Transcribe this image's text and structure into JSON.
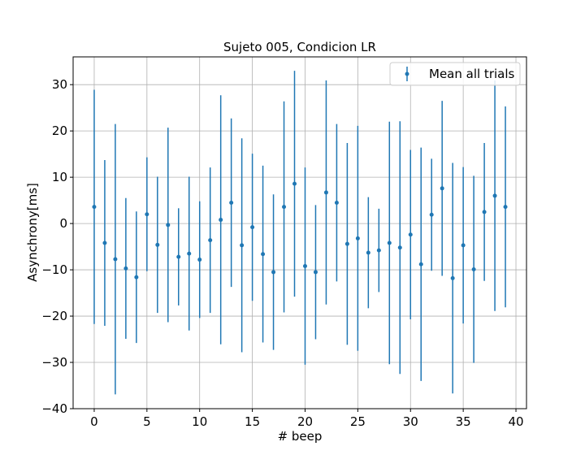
{
  "chart_data": {
    "type": "scatter",
    "title": "Sujeto 005, Condicion LR",
    "xlabel": "# beep",
    "ylabel": "Asynchrony[ms]",
    "xlim": [
      -2,
      41
    ],
    "ylim": [
      -40,
      36
    ],
    "xticks": [
      0,
      5,
      10,
      15,
      20,
      25,
      30,
      35,
      40
    ],
    "yticks": [
      -40,
      -30,
      -20,
      -10,
      0,
      10,
      20,
      30
    ],
    "grid": true,
    "legend": {
      "position": "top-right"
    },
    "colors": {
      "series": "#1f77b4"
    },
    "series": [
      {
        "name": "Mean all trials",
        "x": [
          0,
          1,
          2,
          3,
          4,
          5,
          6,
          7,
          8,
          9,
          10,
          11,
          12,
          13,
          14,
          15,
          16,
          17,
          18,
          19,
          20,
          21,
          22,
          23,
          24,
          25,
          26,
          27,
          28,
          29,
          30,
          31,
          32,
          33,
          34,
          35,
          36,
          37,
          38,
          39
        ],
        "y": [
          3.6,
          -4.2,
          -7.7,
          -9.7,
          -11.6,
          2.0,
          -4.6,
          -0.3,
          -7.2,
          -6.5,
          -7.8,
          -3.6,
          0.8,
          4.5,
          -4.7,
          -0.8,
          -6.6,
          -10.5,
          3.6,
          8.6,
          -9.2,
          -10.5,
          6.7,
          4.5,
          -4.4,
          -3.2,
          -6.3,
          -5.8,
          -4.2,
          -5.2,
          -2.4,
          -8.8,
          1.9,
          7.6,
          -11.8,
          -4.7,
          -9.9,
          2.5,
          6.0,
          3.6
        ],
        "err": [
          25.3,
          17.9,
          29.2,
          15.2,
          14.2,
          12.3,
          14.7,
          21.0,
          10.5,
          16.6,
          12.6,
          15.7,
          26.9,
          18.2,
          23.1,
          15.9,
          19.1,
          16.8,
          22.8,
          24.4,
          21.3,
          14.5,
          24.2,
          17.0,
          21.8,
          24.3,
          12.0,
          9.0,
          26.2,
          27.3,
          18.3,
          25.2,
          12.1,
          18.9,
          24.9,
          16.9,
          20.2,
          14.9,
          24.9,
          21.7
        ]
      }
    ]
  }
}
